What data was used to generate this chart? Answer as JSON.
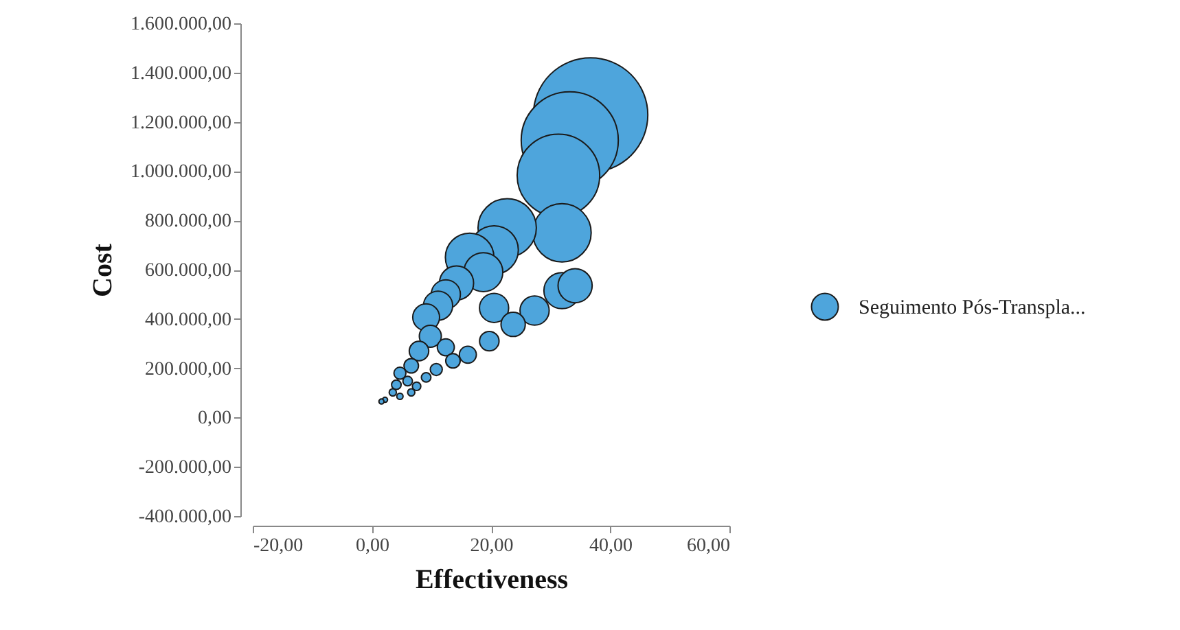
{
  "chart_data": {
    "type": "bubble",
    "xlabel": "Effectiveness",
    "ylabel": "Cost",
    "legend": "right",
    "grid": false,
    "xlim": [
      -20,
      60
    ],
    "xticks": [
      {
        "value": -20,
        "label": "-20,00"
      },
      {
        "value": 0,
        "label": "0,00"
      },
      {
        "value": 20,
        "label": "20,00"
      },
      {
        "value": 40,
        "label": "40,00"
      },
      {
        "value": 60,
        "label": "60,00"
      }
    ],
    "ylim": [
      -400000,
      1600000
    ],
    "yticks": [
      {
        "value": -400000,
        "label": "-400.000,00"
      },
      {
        "value": -200000,
        "label": "-200.000,00"
      },
      {
        "value": 0,
        "label": "0,00"
      },
      {
        "value": 200000,
        "label": "200.000,00"
      },
      {
        "value": 400000,
        "label": "400.000,00"
      },
      {
        "value": 600000,
        "label": "600.000,00"
      },
      {
        "value": 800000,
        "label": "800.000,00"
      },
      {
        "value": 1000000,
        "label": "1.000.000,00"
      },
      {
        "value": 1200000,
        "label": "1.200.000,00"
      },
      {
        "value": 1400000,
        "label": "1.400.000,00"
      },
      {
        "value": 1600000,
        "label": "1.600.000,00"
      }
    ],
    "series": [
      {
        "name": "Seguimento Pós-Transpla...",
        "color": "#4ea5dc",
        "x": [
          36.7,
          33.2,
          31.3,
          31.9,
          22.7,
          20.5,
          16.4,
          18.7,
          31.9,
          34.1,
          14.2,
          12.4,
          11.1,
          20.5,
          27.3,
          9.1,
          23.7,
          9.8,
          19.7,
          7.9,
          12.4,
          16.1,
          13.6,
          6.6,
          10.8,
          4.7,
          9.1,
          6.0,
          4.1,
          7.5,
          3.5,
          6.6,
          4.7,
          2.2,
          1.6
        ],
        "values": [
          1228000,
          1125000,
          983000,
          750000,
          770000,
          680000,
          650000,
          590000,
          515000,
          535000,
          546000,
          500000,
          454000,
          445000,
          434000,
          407000,
          378000,
          330000,
          310000,
          270000,
          285000,
          255000,
          230000,
          210000,
          195000,
          180000,
          163000,
          148000,
          133000,
          127000,
          102000,
          102000,
          86000,
          72000,
          65000
        ],
        "sizes": [
          1,
          0.72,
          0.52,
          0.26,
          0.26,
          0.18,
          0.18,
          0.116,
          0.1,
          0.089,
          0.089,
          0.065,
          0.065,
          0.065,
          0.065,
          0.055,
          0.045,
          0.037,
          0.029,
          0.029,
          0.022,
          0.022,
          0.016,
          0.016,
          0.011,
          0.011,
          0.007,
          0.007,
          0.007,
          0.0055,
          0.004,
          0.004,
          0.003,
          0.002,
          0.002
        ]
      }
    ]
  }
}
